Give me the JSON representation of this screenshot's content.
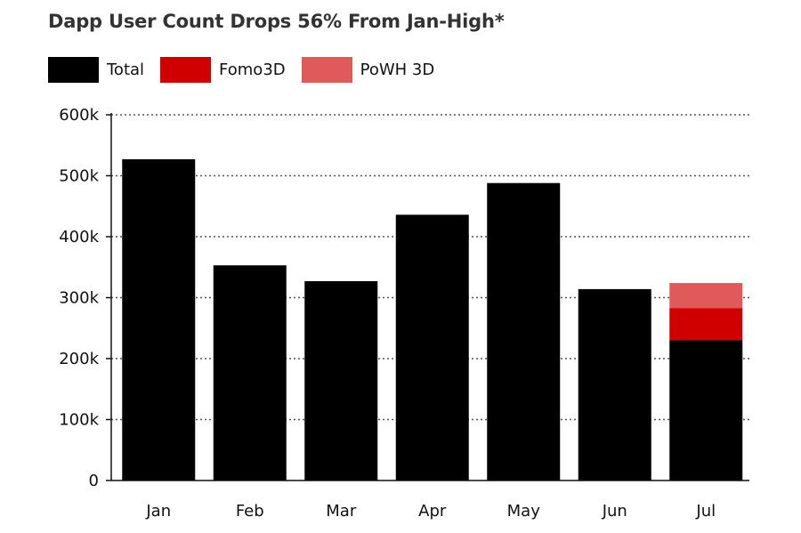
{
  "chart_data": {
    "type": "bar",
    "stacked": true,
    "title": "Dapp User Count Drops 56% From Jan-High*",
    "xlabel": "",
    "ylabel": "",
    "categories": [
      "Jan",
      "Feb",
      "Mar",
      "Apr",
      "May",
      "Jun",
      "Jul"
    ],
    "series": [
      {
        "name": "Total",
        "color": "#000000",
        "values": [
          527000,
          353000,
          327000,
          436000,
          488000,
          314000,
          230000
        ]
      },
      {
        "name": "Fomo3D",
        "color": "#d00000",
        "values": [
          0,
          0,
          0,
          0,
          0,
          0,
          53000
        ]
      },
      {
        "name": "PoWH 3D",
        "color": "#e05a5a",
        "values": [
          0,
          0,
          0,
          0,
          0,
          0,
          41000
        ]
      }
    ],
    "ylim": [
      0,
      600000
    ],
    "yticks": [
      0,
      100000,
      200000,
      300000,
      400000,
      500000,
      600000
    ],
    "ytick_labels": [
      "0",
      "100k",
      "200k",
      "300k",
      "400k",
      "500k",
      "600k"
    ],
    "grid": "horizontal-dotted",
    "legend_position": "top-left"
  }
}
